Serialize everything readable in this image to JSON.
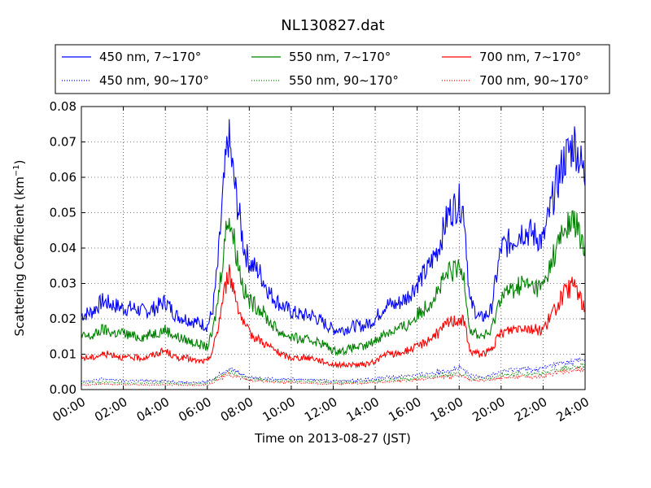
{
  "chart_data": {
    "type": "line",
    "title": "NL130827.dat",
    "xlabel": "Time on 2013-08-27 (JST)",
    "ylabel": "Scattering Coefficient (km",
    "ylabel_sup": "−1",
    "ylabel_close": ")",
    "xlim": [
      0,
      24
    ],
    "ylim": [
      0,
      0.08
    ],
    "x_ticks": [
      0,
      2,
      4,
      6,
      8,
      10,
      12,
      14,
      16,
      18,
      20,
      22,
      24
    ],
    "x_tick_labels": [
      "00:00",
      "02:00",
      "04:00",
      "06:00",
      "08:00",
      "10:00",
      "12:00",
      "14:00",
      "16:00",
      "18:00",
      "20:00",
      "22:00",
      "24:00"
    ],
    "y_ticks": [
      0,
      0.01,
      0.02,
      0.03,
      0.04,
      0.05,
      0.06,
      0.07,
      0.08
    ],
    "y_tick_labels": [
      "0.00",
      "0.01",
      "0.02",
      "0.03",
      "0.04",
      "0.05",
      "0.06",
      "0.07",
      "0.08"
    ],
    "grid": true,
    "legend_placement": "above plot, 3 columns",
    "legend": [
      {
        "label": "450 nm, 7∼170°",
        "color": "#0000ff",
        "style": "solid"
      },
      {
        "label": "550 nm, 7∼170°",
        "color": "#008000",
        "style": "solid"
      },
      {
        "label": "700 nm, 7∼170°",
        "color": "#ff0000",
        "style": "solid"
      },
      {
        "label": "450 nm, 90∼170°",
        "color": "#0000ff",
        "style": "dotted"
      },
      {
        "label": "550 nm, 90∼170°",
        "color": "#008000",
        "style": "dotted"
      },
      {
        "label": "700 nm, 90∼170°",
        "color": "#ff0000",
        "style": "dotted"
      }
    ],
    "x": [
      0,
      0.5,
      1,
      1.5,
      2,
      2.5,
      3,
      3.5,
      4,
      4.5,
      5,
      5.5,
      6,
      6.25,
      6.5,
      6.75,
      7,
      7.25,
      7.5,
      7.75,
      8,
      8.5,
      9,
      9.5,
      10,
      10.5,
      11,
      11.5,
      12,
      12.5,
      13,
      13.5,
      14,
      14.5,
      15,
      15.5,
      16,
      16.5,
      17,
      17.5,
      18,
      18.25,
      18.5,
      19,
      19.5,
      20,
      20.5,
      21,
      21.5,
      22,
      22.5,
      23,
      23.5,
      24
    ],
    "series": [
      {
        "name": "450 nm, 7∼170°",
        "color": "#0000ff",
        "style": "solid",
        "values": [
          0.021,
          0.022,
          0.025,
          0.024,
          0.023,
          0.023,
          0.022,
          0.023,
          0.025,
          0.021,
          0.02,
          0.019,
          0.018,
          0.022,
          0.035,
          0.055,
          0.072,
          0.06,
          0.05,
          0.04,
          0.036,
          0.033,
          0.027,
          0.024,
          0.022,
          0.021,
          0.021,
          0.019,
          0.017,
          0.017,
          0.018,
          0.018,
          0.02,
          0.024,
          0.024,
          0.026,
          0.03,
          0.034,
          0.04,
          0.05,
          0.053,
          0.05,
          0.025,
          0.02,
          0.022,
          0.04,
          0.042,
          0.045,
          0.044,
          0.042,
          0.055,
          0.065,
          0.07,
          0.06
        ]
      },
      {
        "name": "550 nm, 7∼170°",
        "color": "#008000",
        "style": "solid",
        "values": [
          0.015,
          0.015,
          0.017,
          0.016,
          0.016,
          0.015,
          0.015,
          0.016,
          0.017,
          0.015,
          0.014,
          0.013,
          0.012,
          0.016,
          0.025,
          0.038,
          0.05,
          0.043,
          0.035,
          0.028,
          0.025,
          0.023,
          0.019,
          0.016,
          0.015,
          0.014,
          0.014,
          0.013,
          0.011,
          0.011,
          0.012,
          0.012,
          0.014,
          0.016,
          0.017,
          0.018,
          0.021,
          0.024,
          0.028,
          0.033,
          0.034,
          0.032,
          0.017,
          0.015,
          0.016,
          0.027,
          0.028,
          0.03,
          0.029,
          0.029,
          0.038,
          0.045,
          0.048,
          0.038
        ]
      },
      {
        "name": "700 nm, 7∼170°",
        "color": "#ff0000",
        "style": "solid",
        "values": [
          0.009,
          0.009,
          0.01,
          0.01,
          0.009,
          0.009,
          0.009,
          0.01,
          0.011,
          0.009,
          0.009,
          0.008,
          0.008,
          0.011,
          0.017,
          0.026,
          0.033,
          0.029,
          0.023,
          0.018,
          0.016,
          0.014,
          0.012,
          0.01,
          0.009,
          0.009,
          0.009,
          0.008,
          0.007,
          0.007,
          0.007,
          0.007,
          0.008,
          0.01,
          0.01,
          0.011,
          0.012,
          0.014,
          0.016,
          0.019,
          0.02,
          0.019,
          0.011,
          0.01,
          0.011,
          0.016,
          0.017,
          0.018,
          0.017,
          0.017,
          0.022,
          0.027,
          0.03,
          0.022
        ]
      },
      {
        "name": "450 nm, 90∼170°",
        "color": "#0000ff",
        "style": "dotted",
        "values": [
          0.0025,
          0.0025,
          0.003,
          0.0027,
          0.0025,
          0.0025,
          0.0025,
          0.0025,
          0.0025,
          0.0022,
          0.002,
          0.002,
          0.0022,
          0.003,
          0.004,
          0.005,
          0.006,
          0.0055,
          0.005,
          0.004,
          0.0035,
          0.0033,
          0.003,
          0.003,
          0.003,
          0.003,
          0.0028,
          0.0026,
          0.0025,
          0.0025,
          0.0026,
          0.0028,
          0.003,
          0.0035,
          0.0035,
          0.004,
          0.004,
          0.0045,
          0.005,
          0.0055,
          0.006,
          0.0055,
          0.004,
          0.0035,
          0.004,
          0.005,
          0.0055,
          0.006,
          0.0055,
          0.006,
          0.007,
          0.0075,
          0.008,
          0.0085
        ]
      },
      {
        "name": "550 nm, 90∼170°",
        "color": "#008000",
        "style": "dotted",
        "values": [
          0.0018,
          0.0019,
          0.0022,
          0.002,
          0.0019,
          0.0019,
          0.0018,
          0.0018,
          0.0019,
          0.0017,
          0.0016,
          0.0016,
          0.0017,
          0.0024,
          0.0033,
          0.0042,
          0.005,
          0.0045,
          0.0042,
          0.0035,
          0.003,
          0.0028,
          0.0025,
          0.0025,
          0.0024,
          0.0023,
          0.0022,
          0.002,
          0.002,
          0.002,
          0.002,
          0.0022,
          0.0024,
          0.0027,
          0.0028,
          0.003,
          0.0032,
          0.0036,
          0.004,
          0.0044,
          0.0046,
          0.0043,
          0.0032,
          0.003,
          0.0032,
          0.004,
          0.0043,
          0.0046,
          0.0044,
          0.0046,
          0.0055,
          0.006,
          0.0065,
          0.0068
        ]
      },
      {
        "name": "700 nm, 90∼170°",
        "color": "#ff0000",
        "style": "dotted",
        "values": [
          0.0013,
          0.0014,
          0.0016,
          0.0015,
          0.0014,
          0.0014,
          0.0013,
          0.0013,
          0.0014,
          0.0013,
          0.0012,
          0.0012,
          0.0013,
          0.0019,
          0.0027,
          0.0035,
          0.0042,
          0.0038,
          0.0035,
          0.003,
          0.0026,
          0.0024,
          0.0021,
          0.002,
          0.002,
          0.0019,
          0.0018,
          0.0017,
          0.0016,
          0.0016,
          0.0017,
          0.0018,
          0.002,
          0.0022,
          0.0023,
          0.0025,
          0.0027,
          0.003,
          0.0033,
          0.0036,
          0.0038,
          0.0036,
          0.0027,
          0.0025,
          0.0027,
          0.0033,
          0.0035,
          0.0038,
          0.0036,
          0.0038,
          0.0045,
          0.005,
          0.0054,
          0.0056
        ]
      }
    ]
  }
}
